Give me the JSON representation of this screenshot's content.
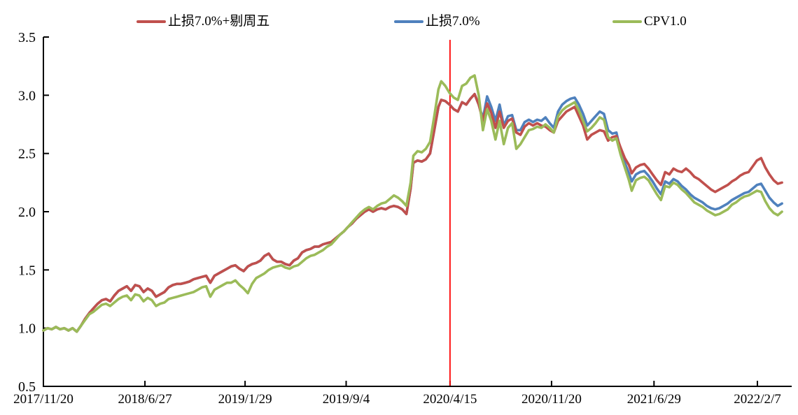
{
  "chart_data": {
    "type": "line",
    "title": "",
    "legend_position": "top",
    "background": "#ffffff",
    "axis_color": "#000000",
    "x_axis": {
      "type": "date",
      "tick_labels": [
        "2017/11/20",
        "2018/6/27",
        "2019/1/29",
        "2019/9/4",
        "2020/4/15",
        "2020/11/20",
        "2021/6/29",
        "2022/2/7"
      ]
    },
    "y_axis": {
      "min": 0.5,
      "max": 3.5,
      "ticks": [
        0.5,
        1.0,
        1.5,
        2.0,
        2.5,
        3.0,
        3.5
      ],
      "grid": false
    },
    "annotation_vline": {
      "date": "2020/4/15",
      "color": "#ff0000"
    },
    "dates": [
      "2017/11/20",
      "2017/11/29",
      "2017/12/8",
      "2017/12/17",
      "2017/12/26",
      "2018/1/4",
      "2018/1/13",
      "2018/1/22",
      "2018/1/31",
      "2018/2/9",
      "2018/2/18",
      "2018/2/27",
      "2018/3/8",
      "2018/3/17",
      "2018/3/26",
      "2018/4/4",
      "2018/4/13",
      "2018/4/22",
      "2018/5/1",
      "2018/5/10",
      "2018/5/19",
      "2018/5/28",
      "2018/6/6",
      "2018/6/15",
      "2018/6/24",
      "2018/7/3",
      "2018/7/12",
      "2018/7/21",
      "2018/7/30",
      "2018/8/8",
      "2018/8/17",
      "2018/8/26",
      "2018/9/4",
      "2018/9/13",
      "2018/9/22",
      "2018/10/1",
      "2018/10/10",
      "2018/10/19",
      "2018/10/28",
      "2018/11/6",
      "2018/11/15",
      "2018/11/24",
      "2018/12/3",
      "2018/12/12",
      "2018/12/21",
      "2018/12/30",
      "2019/1/8",
      "2019/1/17",
      "2019/1/26",
      "2019/2/4",
      "2019/2/13",
      "2019/2/22",
      "2019/3/3",
      "2019/3/12",
      "2019/3/21",
      "2019/3/30",
      "2019/4/8",
      "2019/4/17",
      "2019/4/26",
      "2019/5/5",
      "2019/5/14",
      "2019/5/23",
      "2019/6/1",
      "2019/6/10",
      "2019/6/19",
      "2019/6/28",
      "2019/7/7",
      "2019/7/16",
      "2019/7/25",
      "2019/8/3",
      "2019/8/12",
      "2019/8/21",
      "2019/8/30",
      "2019/9/8",
      "2019/9/17",
      "2019/9/26",
      "2019/10/5",
      "2019/10/14",
      "2019/10/23",
      "2019/11/1",
      "2019/11/10",
      "2019/11/19",
      "2019/11/28",
      "2019/12/7",
      "2019/12/16",
      "2019/12/25",
      "2020/1/3",
      "2020/1/12",
      "2020/1/21",
      "2020/1/27",
      "2020/2/5",
      "2020/2/14",
      "2020/2/23",
      "2020/3/3",
      "2020/3/12",
      "2020/3/21",
      "2020/3/27",
      "2020/4/5",
      "2020/4/14",
      "2020/4/23",
      "2020/5/2",
      "2020/5/11",
      "2020/5/20",
      "2020/5/29",
      "2020/6/7",
      "2020/6/16",
      "2020/6/25",
      "2020/7/4",
      "2020/7/13",
      "2020/7/22",
      "2020/7/31",
      "2020/8/9",
      "2020/8/18",
      "2020/8/27",
      "2020/9/5",
      "2020/9/14",
      "2020/9/23",
      "2020/10/2",
      "2020/10/11",
      "2020/10/20",
      "2020/10/29",
      "2020/11/7",
      "2020/11/16",
      "2020/11/25",
      "2020/12/4",
      "2020/12/13",
      "2020/12/22",
      "2020/12/31",
      "2021/1/9",
      "2021/1/18",
      "2021/1/27",
      "2021/2/5",
      "2021/2/14",
      "2021/2/23",
      "2021/3/4",
      "2021/3/13",
      "2021/3/22",
      "2021/3/31",
      "2021/4/9",
      "2021/4/18",
      "2021/4/27",
      "2021/5/6",
      "2021/5/12",
      "2021/5/21",
      "2021/5/30",
      "2021/6/8",
      "2021/6/17",
      "2021/6/26",
      "2021/7/5",
      "2021/7/14",
      "2021/7/23",
      "2021/8/1",
      "2021/8/10",
      "2021/8/19",
      "2021/8/28",
      "2021/9/6",
      "2021/9/15",
      "2021/9/24",
      "2021/10/3",
      "2021/10/12",
      "2021/10/21",
      "2021/10/30",
      "2021/11/8",
      "2021/11/17",
      "2021/11/26",
      "2021/12/5",
      "2021/12/14",
      "2021/12/23",
      "2022/1/1",
      "2022/1/10",
      "2022/1/19",
      "2022/1/28",
      "2022/2/6",
      "2022/2/15",
      "2022/2/24",
      "2022/3/5",
      "2022/3/14",
      "2022/3/23",
      "2022/4/1"
    ],
    "series": [
      {
        "name": "止损7.0%+剔周五",
        "color": "#c0504d",
        "values": [
          0.98,
          1.0,
          0.99,
          1.01,
          0.99,
          1.0,
          0.98,
          1.0,
          0.97,
          1.02,
          1.08,
          1.13,
          1.17,
          1.21,
          1.24,
          1.25,
          1.23,
          1.28,
          1.32,
          1.34,
          1.36,
          1.32,
          1.37,
          1.36,
          1.31,
          1.34,
          1.32,
          1.27,
          1.29,
          1.31,
          1.35,
          1.37,
          1.38,
          1.38,
          1.39,
          1.4,
          1.42,
          1.43,
          1.44,
          1.45,
          1.39,
          1.45,
          1.47,
          1.49,
          1.51,
          1.53,
          1.54,
          1.51,
          1.49,
          1.53,
          1.55,
          1.56,
          1.58,
          1.62,
          1.64,
          1.59,
          1.57,
          1.57,
          1.55,
          1.54,
          1.58,
          1.6,
          1.65,
          1.67,
          1.68,
          1.7,
          1.7,
          1.72,
          1.73,
          1.74,
          1.77,
          1.8,
          1.83,
          1.87,
          1.9,
          1.94,
          1.97,
          2.0,
          2.02,
          2.0,
          2.02,
          2.03,
          2.02,
          2.04,
          2.05,
          2.04,
          2.02,
          1.98,
          2.2,
          2.42,
          2.44,
          2.43,
          2.45,
          2.5,
          2.7,
          2.9,
          2.96,
          2.95,
          2.92,
          2.88,
          2.86,
          2.94,
          2.92,
          2.97,
          3.01,
          2.92,
          2.78,
          2.93,
          2.85,
          2.72,
          2.86,
          2.72,
          2.78,
          2.8,
          2.68,
          2.66,
          2.73,
          2.76,
          2.74,
          2.76,
          2.74,
          2.73,
          2.7,
          2.68,
          2.78,
          2.82,
          2.86,
          2.88,
          2.9,
          2.82,
          2.74,
          2.62,
          2.66,
          2.68,
          2.7,
          2.69,
          2.61,
          2.64,
          2.65,
          2.55,
          2.46,
          2.4,
          2.33,
          2.38,
          2.4,
          2.41,
          2.37,
          2.32,
          2.27,
          2.23,
          2.34,
          2.32,
          2.37,
          2.35,
          2.34,
          2.37,
          2.34,
          2.3,
          2.28,
          2.25,
          2.22,
          2.19,
          2.17,
          2.19,
          2.21,
          2.23,
          2.26,
          2.28,
          2.31,
          2.33,
          2.34,
          2.39,
          2.44,
          2.46,
          2.38,
          2.32,
          2.27,
          2.24,
          2.25
        ]
      },
      {
        "name": "止损7.0%",
        "color": "#4f81bd",
        "values": [
          0.98,
          1.0,
          0.99,
          1.01,
          0.99,
          1.0,
          0.98,
          1.0,
          0.97,
          1.02,
          1.08,
          1.13,
          1.17,
          1.21,
          1.24,
          1.25,
          1.23,
          1.28,
          1.32,
          1.34,
          1.36,
          1.32,
          1.37,
          1.36,
          1.31,
          1.34,
          1.32,
          1.27,
          1.29,
          1.31,
          1.35,
          1.37,
          1.38,
          1.38,
          1.39,
          1.4,
          1.42,
          1.43,
          1.44,
          1.45,
          1.39,
          1.45,
          1.47,
          1.49,
          1.51,
          1.53,
          1.54,
          1.51,
          1.49,
          1.53,
          1.55,
          1.56,
          1.58,
          1.62,
          1.64,
          1.59,
          1.57,
          1.57,
          1.55,
          1.54,
          1.58,
          1.6,
          1.65,
          1.67,
          1.68,
          1.7,
          1.7,
          1.72,
          1.73,
          1.74,
          1.77,
          1.8,
          1.83,
          1.87,
          1.9,
          1.94,
          1.97,
          2.0,
          2.02,
          2.0,
          2.02,
          2.03,
          2.02,
          2.04,
          2.05,
          2.04,
          2.02,
          1.98,
          2.2,
          2.42,
          2.44,
          2.43,
          2.45,
          2.5,
          2.7,
          2.9,
          2.96,
          2.95,
          2.92,
          2.88,
          2.86,
          2.94,
          2.92,
          2.97,
          3.01,
          2.92,
          2.8,
          2.99,
          2.9,
          2.78,
          2.92,
          2.74,
          2.82,
          2.83,
          2.7,
          2.7,
          2.77,
          2.79,
          2.77,
          2.79,
          2.78,
          2.81,
          2.76,
          2.72,
          2.86,
          2.92,
          2.95,
          2.97,
          2.98,
          2.92,
          2.84,
          2.74,
          2.78,
          2.82,
          2.86,
          2.84,
          2.7,
          2.67,
          2.68,
          2.52,
          2.42,
          2.33,
          2.26,
          2.32,
          2.34,
          2.35,
          2.31,
          2.26,
          2.2,
          2.15,
          2.26,
          2.24,
          2.28,
          2.26,
          2.22,
          2.19,
          2.15,
          2.12,
          2.1,
          2.08,
          2.05,
          2.03,
          2.02,
          2.03,
          2.05,
          2.07,
          2.1,
          2.12,
          2.14,
          2.16,
          2.17,
          2.2,
          2.23,
          2.24,
          2.18,
          2.12,
          2.08,
          2.05,
          2.07
        ]
      },
      {
        "name": "CPV1.0",
        "color": "#9bbb59",
        "values": [
          0.98,
          1.0,
          0.99,
          1.01,
          0.99,
          1.0,
          0.98,
          1.0,
          0.97,
          1.02,
          1.07,
          1.12,
          1.14,
          1.17,
          1.2,
          1.21,
          1.19,
          1.22,
          1.25,
          1.27,
          1.28,
          1.24,
          1.29,
          1.28,
          1.23,
          1.26,
          1.24,
          1.19,
          1.21,
          1.22,
          1.25,
          1.26,
          1.27,
          1.28,
          1.29,
          1.3,
          1.31,
          1.33,
          1.35,
          1.36,
          1.27,
          1.33,
          1.35,
          1.37,
          1.39,
          1.39,
          1.41,
          1.37,
          1.34,
          1.3,
          1.38,
          1.43,
          1.45,
          1.47,
          1.5,
          1.52,
          1.53,
          1.54,
          1.52,
          1.51,
          1.53,
          1.54,
          1.57,
          1.6,
          1.62,
          1.63,
          1.65,
          1.67,
          1.7,
          1.72,
          1.76,
          1.8,
          1.83,
          1.87,
          1.91,
          1.95,
          1.99,
          2.02,
          2.04,
          2.02,
          2.05,
          2.07,
          2.08,
          2.11,
          2.14,
          2.12,
          2.09,
          2.05,
          2.25,
          2.48,
          2.52,
          2.51,
          2.54,
          2.6,
          2.82,
          3.05,
          3.12,
          3.08,
          3.02,
          2.98,
          2.96,
          3.08,
          3.1,
          3.15,
          3.17,
          3.0,
          2.7,
          2.88,
          2.78,
          2.62,
          2.78,
          2.58,
          2.72,
          2.76,
          2.54,
          2.58,
          2.64,
          2.7,
          2.71,
          2.73,
          2.72,
          2.75,
          2.72,
          2.68,
          2.82,
          2.87,
          2.9,
          2.92,
          2.94,
          2.87,
          2.78,
          2.69,
          2.72,
          2.76,
          2.81,
          2.79,
          2.64,
          2.61,
          2.63,
          2.49,
          2.38,
          2.27,
          2.18,
          2.27,
          2.29,
          2.3,
          2.27,
          2.21,
          2.15,
          2.1,
          2.22,
          2.21,
          2.25,
          2.23,
          2.19,
          2.16,
          2.12,
          2.08,
          2.06,
          2.04,
          2.01,
          1.99,
          1.97,
          1.98,
          2.0,
          2.02,
          2.06,
          2.08,
          2.11,
          2.13,
          2.14,
          2.16,
          2.18,
          2.17,
          2.09,
          2.03,
          1.99,
          1.97,
          2.0
        ]
      }
    ]
  }
}
